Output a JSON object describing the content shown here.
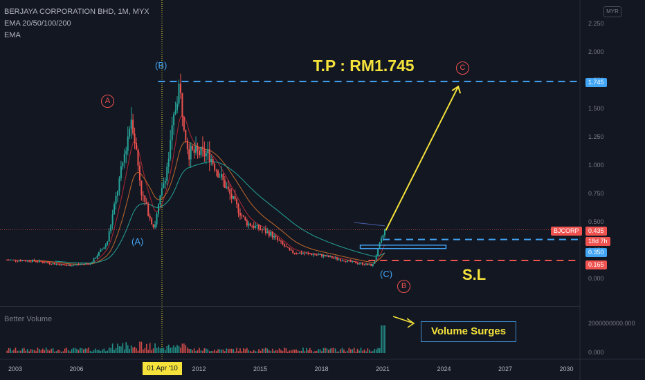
{
  "header": {
    "symbol": "BERJAYA CORPORATION BHD, 1M, MYX",
    "indicator1": "EMA 20/50/100/200",
    "indicator2": "EMA",
    "volume_title": "Better Volume",
    "currency": "MYR"
  },
  "chart_data": {
    "type": "candlestick",
    "price_axis_ticks": [
      "2.250",
      "2.000",
      "1.750",
      "1.500",
      "1.250",
      "1.000",
      "0.750",
      "0.500",
      "0.250",
      "0.000"
    ],
    "volume_axis_ticks": [
      "2000000000.000",
      "0.000"
    ],
    "x_ticks": [
      "2003",
      "2006",
      "2009",
      "2012",
      "2015",
      "2018",
      "2021",
      "2024",
      "2027",
      "2030"
    ],
    "crosshair_date": "01 Apr '10",
    "ylim": [
      -0.15,
      2.4
    ],
    "price_path_approx": [
      {
        "year": 2002.6,
        "close": 0.17
      },
      {
        "year": 2004.0,
        "close": 0.16
      },
      {
        "year": 2005.5,
        "close": 0.12
      },
      {
        "year": 2006.7,
        "close": 0.14
      },
      {
        "year": 2007.5,
        "close": 0.32
      },
      {
        "year": 2008.3,
        "close": 1.05
      },
      {
        "year": 2008.7,
        "close": 1.45
      },
      {
        "year": 2009.2,
        "close": 0.75
      },
      {
        "year": 2009.8,
        "close": 0.45
      },
      {
        "year": 2010.5,
        "close": 1.05
      },
      {
        "year": 2011.0,
        "close": 1.72
      },
      {
        "year": 2011.5,
        "close": 1.12
      },
      {
        "year": 2012.5,
        "close": 1.1
      },
      {
        "year": 2013.5,
        "close": 0.75
      },
      {
        "year": 2014.3,
        "close": 0.5
      },
      {
        "year": 2015.5,
        "close": 0.4
      },
      {
        "year": 2016.5,
        "close": 0.24
      },
      {
        "year": 2018.0,
        "close": 0.21
      },
      {
        "year": 2019.5,
        "close": 0.15
      },
      {
        "year": 2020.5,
        "close": 0.12
      },
      {
        "year": 2021.1,
        "close": 0.43
      }
    ],
    "price_labels": [
      {
        "text": "BJCORP",
        "value": 0.435,
        "color": "#ef5350"
      },
      {
        "text": "0.435",
        "value": 0.435,
        "color": "#ef5350"
      },
      {
        "text": "18d 7h",
        "value": 0.435,
        "color": "#ef5350"
      },
      {
        "text": "1.745",
        "value": 1.745,
        "color": "#42a5f5"
      },
      {
        "text": "0.350",
        "value": 0.35,
        "color": "#42a5f5"
      },
      {
        "text": "0.165",
        "value": 0.165,
        "color": "#ef5350"
      }
    ],
    "levels": {
      "target": 1.745,
      "entry": 0.35,
      "stop": 0.165,
      "current": 0.435
    },
    "annotations": {
      "target": "T.P : RM1.745",
      "stop": "S.L",
      "volume": "Volume Surges"
    },
    "wave_labels": [
      {
        "text": "A",
        "style": "circled",
        "color": "#ef5350"
      },
      {
        "text": "(B)",
        "style": "plain",
        "color": "#42a5f5"
      },
      {
        "text": "(A)",
        "style": "plain",
        "color": "#42a5f5"
      },
      {
        "text": "C",
        "style": "circled",
        "color": "#ef5350"
      },
      {
        "text": "(C)",
        "style": "plain",
        "color": "#42a5f5"
      },
      {
        "text": "B",
        "style": "circled",
        "color": "#ef5350"
      }
    ],
    "colors": {
      "up": "#26a69a",
      "down": "#ef5350",
      "background": "#131722",
      "arrow": "#f5e33b",
      "target_line": "#42a5f5",
      "stop_line": "#ef5350"
    }
  }
}
